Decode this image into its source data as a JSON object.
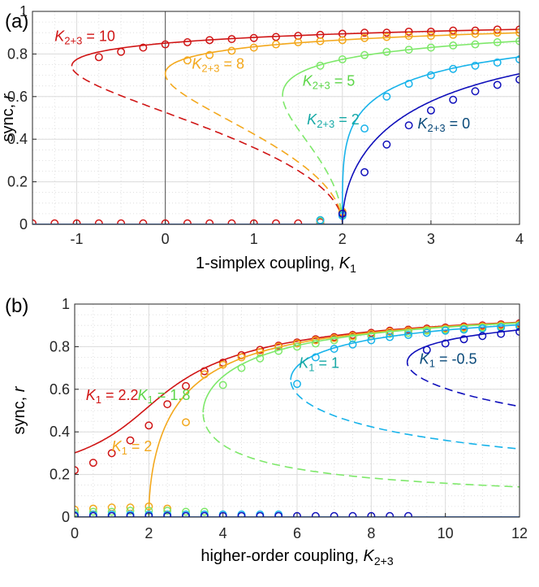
{
  "chart_data": [
    {
      "panel": "(a)",
      "type": "line",
      "xlabel_main": "1-simplex coupling, ",
      "xlabel_var": "K",
      "xlabel_sub": "1",
      "ylabel_main": "sync, ",
      "ylabel_var": "r",
      "xlim": [
        -1.5,
        4
      ],
      "ylim": [
        0,
        1
      ],
      "xticks": [
        -1,
        0,
        1,
        2,
        3,
        4
      ],
      "xtick_labels": [
        "-1",
        "0",
        "1",
        "2",
        "3",
        "4"
      ],
      "yticks": [
        0,
        0.2,
        0.4,
        0.6,
        0.8,
        1
      ],
      "ytick_labels": [
        "0",
        "0.2",
        "0.4",
        "0.6",
        "0.8",
        "1"
      ],
      "series": [
        {
          "name": "K2+3 = 10",
          "label_var": "K",
          "label_sub": "2+3",
          "label_rest": " = 10",
          "color": "#d01515",
          "label_color": "#d01515",
          "K23": 10,
          "markers": [
            [
              -1.5,
              0.005
            ],
            [
              -1.25,
              0.005
            ],
            [
              -1,
              0.005
            ],
            [
              -0.75,
              0.005
            ],
            [
              -0.5,
              0.005
            ],
            [
              -0.25,
              0.005
            ],
            [
              0,
              0.005
            ],
            [
              0.25,
              0.005
            ],
            [
              0.5,
              0.005
            ],
            [
              0.75,
              0.005
            ],
            [
              1,
              0.005
            ],
            [
              1.25,
              0.005
            ],
            [
              1.5,
              0.005
            ],
            [
              1.75,
              0.01
            ],
            [
              2,
              0.055
            ],
            [
              -0.75,
              0.785
            ],
            [
              -0.5,
              0.81
            ],
            [
              -0.25,
              0.83
            ],
            [
              0,
              0.845
            ],
            [
              0.25,
              0.855
            ],
            [
              0.5,
              0.865
            ],
            [
              0.75,
              0.87
            ],
            [
              1,
              0.875
            ],
            [
              1.25,
              0.88
            ],
            [
              1.5,
              0.885
            ],
            [
              1.75,
              0.89
            ],
            [
              2,
              0.895
            ],
            [
              2.25,
              0.9
            ],
            [
              2.5,
              0.9
            ],
            [
              2.75,
              0.905
            ],
            [
              3,
              0.905
            ],
            [
              3.25,
              0.91
            ],
            [
              3.5,
              0.91
            ],
            [
              3.75,
              0.915
            ],
            [
              4,
              0.915
            ]
          ]
        },
        {
          "name": "K2+3 = 8",
          "label_var": "K",
          "label_sub": "2+3",
          "label_rest": " = 8",
          "color": "#f3a81d",
          "label_color": "#f3a81d",
          "K23": 8,
          "markers": [
            [
              1.75,
              0.02
            ],
            [
              2,
              0.06
            ],
            [
              0.25,
              0.77
            ],
            [
              0.5,
              0.795
            ],
            [
              0.75,
              0.815
            ],
            [
              1,
              0.83
            ],
            [
              1.25,
              0.845
            ],
            [
              1.5,
              0.855
            ],
            [
              1.75,
              0.86
            ],
            [
              2,
              0.865
            ],
            [
              2.25,
              0.875
            ],
            [
              2.5,
              0.88
            ],
            [
              2.75,
              0.885
            ],
            [
              3,
              0.885
            ],
            [
              3.25,
              0.89
            ],
            [
              3.5,
              0.895
            ],
            [
              3.75,
              0.9
            ],
            [
              4,
              0.9
            ]
          ]
        },
        {
          "name": "K2+3 = 5",
          "label_var": "K",
          "label_sub": "2+3",
          "label_rest": " = 5",
          "color": "#7ee86a",
          "label_color": "#5cd648",
          "K23": 5,
          "markers": [
            [
              1.75,
              0.015
            ],
            [
              2,
              0.045
            ],
            [
              1.75,
              0.745
            ],
            [
              2,
              0.775
            ],
            [
              2.25,
              0.795
            ],
            [
              2.5,
              0.81
            ],
            [
              2.75,
              0.82
            ],
            [
              3,
              0.83
            ],
            [
              3.25,
              0.84
            ],
            [
              3.5,
              0.845
            ],
            [
              3.75,
              0.855
            ],
            [
              4,
              0.86
            ]
          ]
        },
        {
          "name": "K2+3 = 2",
          "label_var": "K",
          "label_sub": "2+3",
          "label_rest": " = 2",
          "color": "#18b3ea",
          "label_color": "#17a9a6",
          "K23": 2,
          "markers": [
            [
              1.75,
              0.02
            ],
            [
              2,
              0.04
            ],
            [
              2.25,
              0.45
            ],
            [
              2.5,
              0.6
            ],
            [
              2.75,
              0.66
            ],
            [
              3,
              0.7
            ],
            [
              3.25,
              0.73
            ],
            [
              3.5,
              0.745
            ],
            [
              3.75,
              0.76
            ],
            [
              4,
              0.775
            ]
          ]
        },
        {
          "name": "K2+3 = 0",
          "label_var": "K",
          "label_sub": "2+3",
          "label_rest": " = 0",
          "color": "#1010bb",
          "label_color": "#0a4a7a",
          "K23": 0,
          "markers": [
            [
              2,
              0.05
            ],
            [
              2.25,
              0.245
            ],
            [
              2.5,
              0.375
            ],
            [
              2.75,
              0.465
            ],
            [
              3,
              0.535
            ],
            [
              3.25,
              0.585
            ],
            [
              3.5,
              0.625
            ],
            [
              3.75,
              0.655
            ],
            [
              4,
              0.68
            ]
          ]
        }
      ]
    },
    {
      "panel": "(b)",
      "type": "line",
      "xlabel_main": "higher-order coupling, ",
      "xlabel_var": "K",
      "xlabel_sub": "2+3",
      "ylabel_main": "sync, ",
      "ylabel_var": "r",
      "xlim": [
        0,
        12
      ],
      "ylim": [
        0,
        1
      ],
      "xticks": [
        0,
        2,
        4,
        6,
        8,
        10,
        12
      ],
      "xtick_labels": [
        "0",
        "2",
        "4",
        "6",
        "8",
        "10",
        "12"
      ],
      "yticks": [
        0,
        0.2,
        0.4,
        0.6,
        0.8,
        1
      ],
      "ytick_labels": [
        "0",
        "0.2",
        "0.4",
        "0.6",
        "0.8",
        "1"
      ],
      "series": [
        {
          "name": "K1 = 2.2",
          "label_var": "K",
          "label_sub": "1",
          "label_rest": " = 2.2",
          "color": "#d01515",
          "label_color": "#d01515",
          "K1": 2.2,
          "markers": [
            [
              0,
              0.22
            ],
            [
              0.5,
              0.255
            ],
            [
              1,
              0.3
            ],
            [
              1.5,
              0.36
            ],
            [
              2,
              0.43
            ],
            [
              2.5,
              0.53
            ],
            [
              3,
              0.615
            ],
            [
              3.5,
              0.685
            ],
            [
              4,
              0.725
            ],
            [
              4.5,
              0.76
            ],
            [
              5,
              0.785
            ],
            [
              5.5,
              0.805
            ],
            [
              6,
              0.82
            ],
            [
              6.5,
              0.835
            ],
            [
              7,
              0.845
            ],
            [
              7.5,
              0.855
            ],
            [
              8,
              0.865
            ],
            [
              8.5,
              0.875
            ],
            [
              9,
              0.88
            ],
            [
              9.5,
              0.885
            ],
            [
              10,
              0.89
            ],
            [
              10.5,
              0.895
            ],
            [
              11,
              0.9
            ],
            [
              11.5,
              0.905
            ],
            [
              12,
              0.91
            ]
          ]
        },
        {
          "name": "K1 = 2",
          "label_var": "K",
          "label_sub": "1",
          "label_rest": " = 2",
          "color": "#f3a81d",
          "label_color": "#f3a81d",
          "K1": 2,
          "markers": [
            [
              0,
              0.035
            ],
            [
              0.5,
              0.04
            ],
            [
              1,
              0.045
            ],
            [
              1.5,
              0.045
            ],
            [
              2,
              0.05
            ],
            [
              2.5,
              0.04
            ],
            [
              3,
              0.445
            ],
            [
              3.5,
              0.67
            ],
            [
              4,
              0.715
            ],
            [
              4.5,
              0.75
            ],
            [
              5,
              0.775
            ],
            [
              5.5,
              0.8
            ],
            [
              6,
              0.815
            ],
            [
              6.5,
              0.83
            ],
            [
              7,
              0.84
            ],
            [
              7.5,
              0.85
            ],
            [
              8,
              0.86
            ],
            [
              8.5,
              0.87
            ],
            [
              9,
              0.875
            ],
            [
              9.5,
              0.88
            ],
            [
              10,
              0.885
            ],
            [
              10.5,
              0.89
            ],
            [
              11,
              0.895
            ],
            [
              11.5,
              0.9
            ],
            [
              12,
              0.905
            ]
          ]
        },
        {
          "name": "K1 = 1.8",
          "label_var": "K",
          "label_sub": "1",
          "label_rest": " = 1.8",
          "color": "#7ee86a",
          "label_color": "#5cd648",
          "K1": 1.8,
          "markers": [
            [
              0,
              0.02
            ],
            [
              0.5,
              0.025
            ],
            [
              1,
              0.025
            ],
            [
              1.5,
              0.03
            ],
            [
              2,
              0.03
            ],
            [
              2.5,
              0.03
            ],
            [
              3,
              0.025
            ],
            [
              3.5,
              0.025
            ],
            [
              4,
              0.62
            ],
            [
              4.5,
              0.7
            ],
            [
              5,
              0.745
            ],
            [
              5.5,
              0.78
            ],
            [
              6,
              0.8
            ],
            [
              6.5,
              0.815
            ],
            [
              7,
              0.83
            ],
            [
              7.5,
              0.84
            ],
            [
              8,
              0.85
            ],
            [
              8.5,
              0.86
            ],
            [
              9,
              0.865
            ],
            [
              9.5,
              0.875
            ],
            [
              10,
              0.88
            ],
            [
              10.5,
              0.885
            ],
            [
              11,
              0.89
            ],
            [
              11.5,
              0.895
            ],
            [
              12,
              0.9
            ]
          ]
        },
        {
          "name": "K1 = 1",
          "label_var": "K",
          "label_sub": "1",
          "label_rest": " = 1",
          "color": "#18b3ea",
          "label_color": "#17a9a6",
          "K1": 1,
          "markers": [
            [
              0,
              0.01
            ],
            [
              0.5,
              0.012
            ],
            [
              1,
              0.012
            ],
            [
              1.5,
              0.012
            ],
            [
              2,
              0.012
            ],
            [
              2.5,
              0.012
            ],
            [
              3,
              0.012
            ],
            [
              3.5,
              0.012
            ],
            [
              4,
              0.012
            ],
            [
              4.5,
              0.012
            ],
            [
              5,
              0.012
            ],
            [
              5.5,
              0.012
            ],
            [
              6,
              0.625
            ],
            [
              6.5,
              0.75
            ],
            [
              7,
              0.79
            ],
            [
              7.5,
              0.81
            ],
            [
              8,
              0.83
            ],
            [
              8.5,
              0.845
            ],
            [
              9,
              0.855
            ],
            [
              9.5,
              0.865
            ],
            [
              10,
              0.875
            ],
            [
              10.5,
              0.88
            ],
            [
              11,
              0.885
            ],
            [
              11.5,
              0.89
            ],
            [
              12,
              0.895
            ]
          ]
        },
        {
          "name": "K1 = -0.5",
          "label_var": "K",
          "label_sub": "1",
          "label_rest": " = -0.5",
          "color": "#1010bb",
          "label_color": "#0a4a7a",
          "K1": -0.5,
          "markers": [
            [
              0,
              0.005
            ],
            [
              0.5,
              0.005
            ],
            [
              1,
              0.005
            ],
            [
              1.5,
              0.005
            ],
            [
              2,
              0.005
            ],
            [
              2.5,
              0.005
            ],
            [
              3,
              0.005
            ],
            [
              3.5,
              0.005
            ],
            [
              4,
              0.005
            ],
            [
              4.5,
              0.005
            ],
            [
              5,
              0.005
            ],
            [
              5.5,
              0.005
            ],
            [
              6,
              0.005
            ],
            [
              6.5,
              0.005
            ],
            [
              7,
              0.005
            ],
            [
              7.5,
              0.005
            ],
            [
              8,
              0.005
            ],
            [
              8.5,
              0.005
            ],
            [
              9,
              0.005
            ],
            [
              9.5,
              0.785
            ],
            [
              10,
              0.815
            ],
            [
              10.5,
              0.835
            ],
            [
              11,
              0.85
            ],
            [
              11.5,
              0.86
            ],
            [
              12,
              0.87
            ]
          ]
        }
      ]
    }
  ]
}
